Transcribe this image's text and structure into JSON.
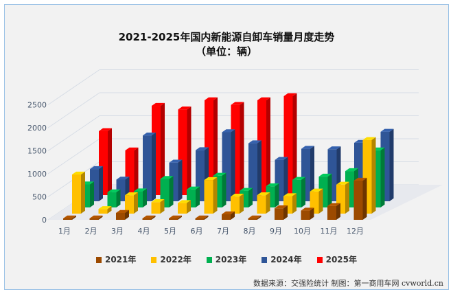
{
  "chart_data": {
    "type": "bar",
    "title": "2021-2025年国内新能源自卸车销量月度走势",
    "subtitle": "（单位：辆）",
    "categories": [
      "1月",
      "2月",
      "3月",
      "4月",
      "5月",
      "6月",
      "7月",
      "8月",
      "9月",
      "10月",
      "11月",
      "12月"
    ],
    "yticks": [
      0,
      500,
      1000,
      1500,
      2000,
      2500
    ],
    "ylim": [
      0,
      2500
    ],
    "grid": true,
    "legend_position": "bottom",
    "series": [
      {
        "name": "2021年",
        "color": "#9C4A00",
        "values": [
          10,
          10,
          150,
          30,
          20,
          10,
          120,
          30,
          250,
          200,
          300,
          850
        ]
      },
      {
        "name": "2022年",
        "color": "#FFC000",
        "values": [
          850,
          100,
          400,
          250,
          230,
          730,
          370,
          400,
          380,
          480,
          630,
          1600
        ]
      },
      {
        "name": "2023年",
        "color": "#00B050",
        "values": [
          500,
          330,
          350,
          620,
          390,
          690,
          360,
          460,
          600,
          670,
          790,
          1240
        ]
      },
      {
        "name": "2024年",
        "color": "#2F5597",
        "values": [
          700,
          470,
          1430,
          840,
          1110,
          1500,
          1260,
          900,
          1140,
          1130,
          1270,
          1510
        ]
      },
      {
        "name": "2025年",
        "color": "#FF0000",
        "values": [
          1390,
          970,
          1940,
          1860,
          2060,
          1960,
          2060,
          2150,
          null,
          null,
          null,
          null
        ]
      }
    ]
  },
  "source": "数据来源：交强险统计  制图：第一商用车网 cvworld.cn"
}
